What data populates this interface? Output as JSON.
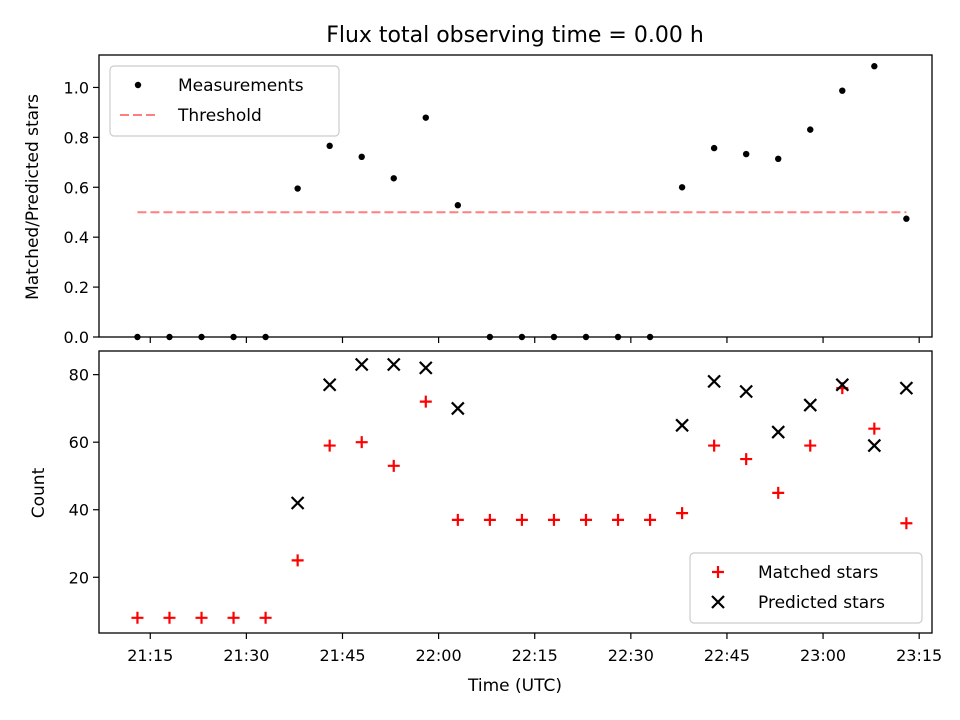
{
  "chart_data": [
    {
      "type": "scatter",
      "title": "Flux total observing time = 0.00 h",
      "xlabel": "",
      "ylabel": "Matched/Predicted stars",
      "xlim": [
        "21:07",
        "23:17"
      ],
      "ylim": [
        0,
        1.13
      ],
      "yticks": [
        "0.0",
        "0.2",
        "0.4",
        "0.6",
        "0.8",
        "1.0"
      ],
      "xticks": [
        "21:15",
        "21:30",
        "21:45",
        "22:00",
        "22:15",
        "22:30",
        "22:45",
        "23:00",
        "23:15"
      ],
      "legend_position": "top-left",
      "series": [
        {
          "name": "Measurements",
          "marker": "dot",
          "color": "#000000",
          "x": [
            "21:13",
            "21:18",
            "21:23",
            "21:28",
            "21:33",
            "21:38",
            "21:43",
            "21:48",
            "21:53",
            "21:58",
            "22:03",
            "22:08",
            "22:13",
            "22:18",
            "22:23",
            "22:28",
            "22:33",
            "22:38",
            "22:43",
            "22:48",
            "22:53",
            "22:58",
            "23:03",
            "23:08",
            "23:13"
          ],
          "y": [
            0,
            0,
            0,
            0,
            0,
            0.595,
            0.766,
            0.722,
            0.636,
            0.879,
            0.528,
            0,
            0,
            0,
            0,
            0,
            0,
            0.6,
            0.757,
            0.733,
            0.714,
            0.831,
            0.987,
            1.085,
            0.474
          ]
        },
        {
          "name": "Threshold",
          "style": "dashed",
          "color": "#ff7f7f",
          "x": [
            "21:13",
            "23:13"
          ],
          "y": [
            0.5,
            0.5
          ]
        }
      ]
    },
    {
      "type": "scatter",
      "title": "",
      "xlabel": "Time (UTC)",
      "ylabel": "Count",
      "xlim": [
        "21:07",
        "23:17"
      ],
      "ylim": [
        3.5,
        87
      ],
      "yticks": [
        "20",
        "40",
        "60",
        "80"
      ],
      "xticks": [
        "21:15",
        "21:30",
        "21:45",
        "22:00",
        "22:15",
        "22:30",
        "22:45",
        "23:00",
        "23:15"
      ],
      "legend_position": "lower-right",
      "series": [
        {
          "name": "Matched stars",
          "marker": "plus",
          "color": "#ff0000",
          "x": [
            "21:13",
            "21:18",
            "21:23",
            "21:28",
            "21:33",
            "21:38",
            "21:43",
            "21:48",
            "21:53",
            "21:58",
            "22:03",
            "22:08",
            "22:13",
            "22:18",
            "22:23",
            "22:28",
            "22:33",
            "22:38",
            "22:43",
            "22:48",
            "22:53",
            "22:58",
            "23:03",
            "23:08",
            "23:13"
          ],
          "y": [
            8,
            8,
            8,
            8,
            8,
            25,
            59,
            60,
            53,
            72,
            37,
            37,
            37,
            37,
            37,
            37,
            37,
            39,
            59,
            55,
            45,
            59,
            76,
            64,
            36
          ]
        },
        {
          "name": "Predicted stars",
          "marker": "x",
          "color": "#000000",
          "x": [
            "21:38",
            "21:43",
            "21:48",
            "21:53",
            "21:58",
            "22:03",
            "22:38",
            "22:43",
            "22:48",
            "22:53",
            "22:58",
            "23:03",
            "23:08",
            "23:13"
          ],
          "y": [
            42,
            77,
            83,
            83,
            82,
            70,
            65,
            78,
            75,
            63,
            71,
            77,
            59,
            76
          ]
        }
      ]
    }
  ]
}
